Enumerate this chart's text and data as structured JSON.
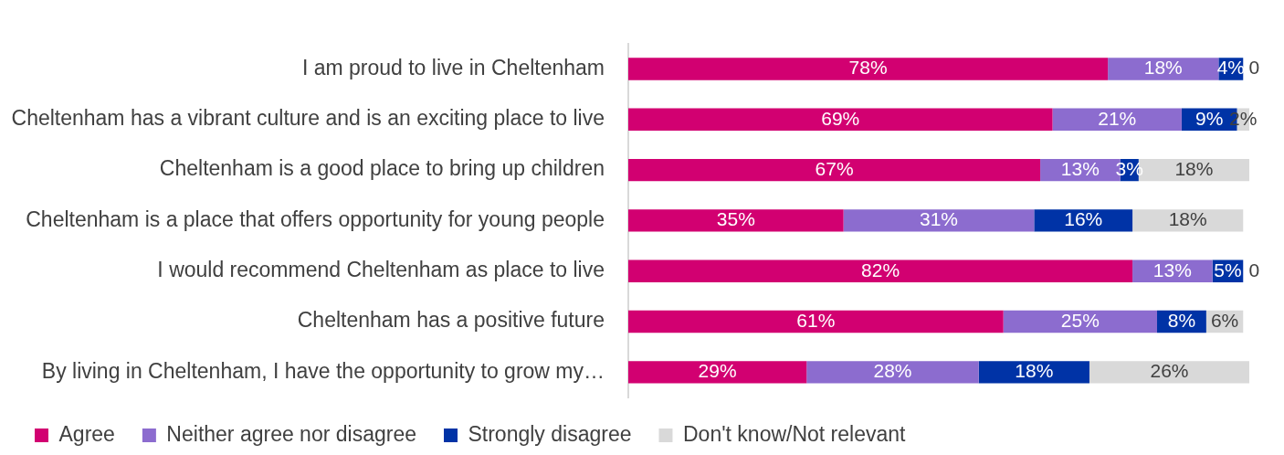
{
  "chart_data": {
    "type": "bar",
    "orientation": "horizontal",
    "stacked": true,
    "legend": "bottom",
    "categories": [
      "I am proud to live in Cheltenham",
      "Cheltenham has a vibrant culture and is an exciting place to live",
      "Cheltenham is a good place to bring up children",
      "Cheltenham is a place that offers opportunity for young people",
      "I would recommend Cheltenham as place to live",
      "Cheltenham has a positive future",
      "By living in Cheltenham, I have the opportunity to grow my…"
    ],
    "series": [
      {
        "name": "Agree",
        "color": "#d20071",
        "values": [
          78,
          69,
          67,
          35,
          82,
          61,
          29
        ],
        "value_labels": [
          "78%",
          "69%",
          "67%",
          "35%",
          "82%",
          "61%",
          "29%"
        ]
      },
      {
        "name": "Neither agree nor disagree",
        "color": "#8c6ccf",
        "values": [
          18,
          21,
          13,
          31,
          13,
          25,
          28
        ],
        "value_labels": [
          "18%",
          "21%",
          "13%",
          "31%",
          "13%",
          "25%",
          "28%"
        ]
      },
      {
        "name": "Strongly disagree",
        "color": "#0033a6",
        "values": [
          4,
          9,
          3,
          16,
          5,
          8,
          18
        ],
        "value_labels": [
          "4%",
          "9%",
          "3%",
          "16%",
          "5%",
          "8%",
          "18%"
        ]
      },
      {
        "name": "Don't know/Not relevant",
        "color": "#d9d9d9",
        "values": [
          0,
          2,
          18,
          18,
          0,
          6,
          26
        ],
        "value_labels": [
          "0",
          "2%",
          "18%",
          "18%",
          "0",
          "6%",
          "26%"
        ]
      }
    ]
  }
}
